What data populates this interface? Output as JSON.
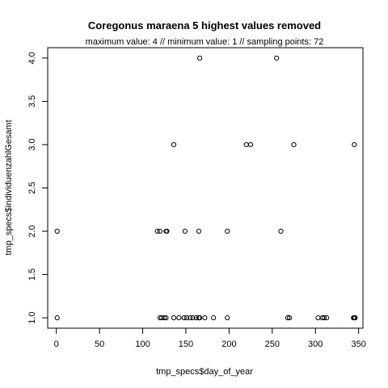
{
  "chart_data": {
    "type": "scatter",
    "title": "Coregonus maraena  5 highest values removed",
    "subtitle": "maximum value: 4  //  minimum value: 1  // sampling points: 72",
    "xlabel": "tmp_specs$day_of_year",
    "ylabel": "tmp_specs$individuenzahlGesamt",
    "xlim": [
      -10,
      355
    ],
    "ylim": [
      0.88,
      4.12
    ],
    "x_ticks": [
      0,
      50,
      100,
      150,
      200,
      250,
      300,
      350
    ],
    "x_tick_labels": [
      "0",
      "50",
      "100",
      "150",
      "200",
      "250",
      "300",
      "350"
    ],
    "y_ticks": [
      1.0,
      1.5,
      2.0,
      2.5,
      3.0,
      3.5,
      4.0
    ],
    "y_tick_labels": [
      "1.0",
      "1.5",
      "2.0",
      "2.5",
      "3.0",
      "3.5",
      "4.0"
    ],
    "grid": false,
    "legend": "none",
    "marker": "open-circle",
    "points": [
      {
        "x": 1,
        "y": 2
      },
      {
        "x": 1,
        "y": 1
      },
      {
        "x": 117,
        "y": 2
      },
      {
        "x": 120,
        "y": 2
      },
      {
        "x": 127,
        "y": 2
      },
      {
        "x": 128,
        "y": 2
      },
      {
        "x": 149,
        "y": 2
      },
      {
        "x": 165,
        "y": 2
      },
      {
        "x": 198,
        "y": 2
      },
      {
        "x": 260,
        "y": 2
      },
      {
        "x": 136,
        "y": 3
      },
      {
        "x": 220,
        "y": 3
      },
      {
        "x": 225,
        "y": 3
      },
      {
        "x": 275,
        "y": 3
      },
      {
        "x": 345,
        "y": 3
      },
      {
        "x": 166,
        "y": 4
      },
      {
        "x": 255,
        "y": 4
      },
      {
        "x": 120,
        "y": 1
      },
      {
        "x": 122,
        "y": 1
      },
      {
        "x": 125,
        "y": 1
      },
      {
        "x": 127,
        "y": 1
      },
      {
        "x": 136,
        "y": 1
      },
      {
        "x": 142,
        "y": 1
      },
      {
        "x": 148,
        "y": 1
      },
      {
        "x": 151,
        "y": 1
      },
      {
        "x": 155,
        "y": 1
      },
      {
        "x": 158,
        "y": 1
      },
      {
        "x": 162,
        "y": 1
      },
      {
        "x": 165,
        "y": 1
      },
      {
        "x": 166,
        "y": 1
      },
      {
        "x": 172,
        "y": 1
      },
      {
        "x": 182,
        "y": 1
      },
      {
        "x": 198,
        "y": 1
      },
      {
        "x": 268,
        "y": 1
      },
      {
        "x": 270,
        "y": 1
      },
      {
        "x": 303,
        "y": 1
      },
      {
        "x": 308,
        "y": 1
      },
      {
        "x": 310,
        "y": 1
      },
      {
        "x": 313,
        "y": 1
      },
      {
        "x": 344,
        "y": 1
      },
      {
        "x": 345,
        "y": 1
      },
      {
        "x": 346,
        "y": 1
      }
    ]
  }
}
